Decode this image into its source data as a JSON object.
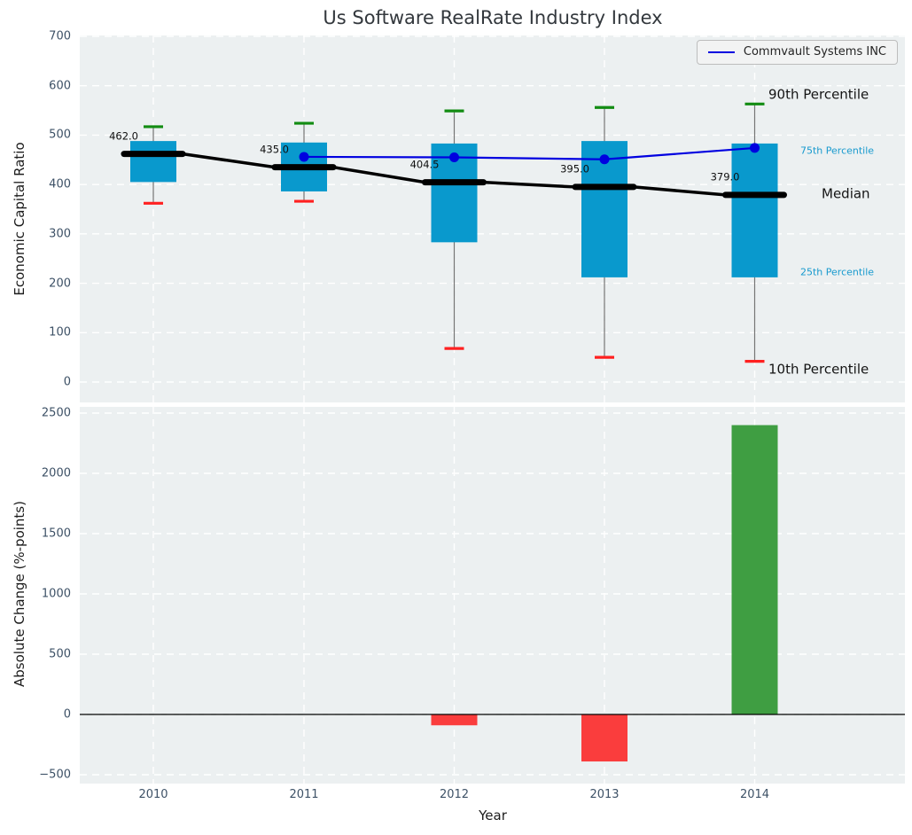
{
  "title": "Us Software RealRate Industry Index",
  "legend": {
    "label": "Commvault Systems INC"
  },
  "colors": {
    "axes_bg": "#ecf0f1",
    "grid": "#ffffff",
    "box_fill": "#0999cd",
    "whisker": "#757575",
    "cap_top": "#128c12",
    "cap_bottom": "#ff2020",
    "median_line": "#000000",
    "company_line": "#0000e0",
    "bar_negative": "#fa3d3d",
    "bar_positive": "#3f9e42",
    "tick_label": "#3d5166",
    "percentile_blue": "#189ace",
    "zero_line": "#000000"
  },
  "chart_data": [
    {
      "type": "boxplot+line",
      "ylabel": "Economic Capital Ratio",
      "ylim": [
        0,
        700
      ],
      "yticks": [
        0,
        100,
        200,
        300,
        400,
        500,
        600,
        700
      ],
      "ytick_labels": [
        "0",
        "100",
        "200",
        "300",
        "400",
        "500",
        "600",
        "700"
      ],
      "categories": [
        "2010",
        "2011",
        "2012",
        "2013",
        "2014"
      ],
      "boxes": [
        {
          "year": "2010",
          "p10": 362,
          "p25": 405,
          "median": 462.0,
          "p75": 488,
          "p90": 517,
          "label": "462.0"
        },
        {
          "year": "2011",
          "p10": 366,
          "p25": 386,
          "median": 435.0,
          "p75": 485,
          "p90": 524,
          "label": "435.0"
        },
        {
          "year": "2012",
          "p10": 68,
          "p25": 283,
          "median": 404.5,
          "p75": 483,
          "p90": 549,
          "label": "404.5"
        },
        {
          "year": "2013",
          "p10": 50,
          "p25": 212,
          "median": 395.0,
          "p75": 488,
          "p90": 556,
          "label": "395.0"
        },
        {
          "year": "2014",
          "p10": 42,
          "p25": 212,
          "median": 379.0,
          "p75": 483,
          "p90": 563,
          "label": "379.0"
        }
      ],
      "company_series": {
        "name": "Commvault Systems INC",
        "x": [
          "2011",
          "2012",
          "2013",
          "2014"
        ],
        "values": [
          456,
          455,
          451,
          474
        ]
      },
      "percentile_labels": [
        {
          "text": "90th Percentile",
          "variant": "large",
          "anchor": "p90"
        },
        {
          "text": "75th Percentile",
          "variant": "small",
          "anchor": "p75"
        },
        {
          "text": "Median",
          "variant": "large",
          "anchor": "median"
        },
        {
          "text": "25th Percentile",
          "variant": "small",
          "anchor": "p25"
        },
        {
          "text": "10th Percentile",
          "variant": "large",
          "anchor": "p10"
        }
      ],
      "legend_position": "upper right",
      "grid": true
    },
    {
      "type": "bar",
      "ylabel": "Absolute Change (%-points)",
      "xlabel": "Year",
      "ylim": [
        -500,
        2500
      ],
      "yticks": [
        -500,
        0,
        500,
        1000,
        1500,
        2000,
        2500
      ],
      "ytick_labels": [
        "−500",
        "0",
        "500",
        "1000",
        "1500",
        "2000",
        "2500"
      ],
      "categories": [
        "2010",
        "2011",
        "2012",
        "2013",
        "2014"
      ],
      "values": [
        null,
        null,
        -90,
        -390,
        2400
      ],
      "grid": true
    }
  ]
}
